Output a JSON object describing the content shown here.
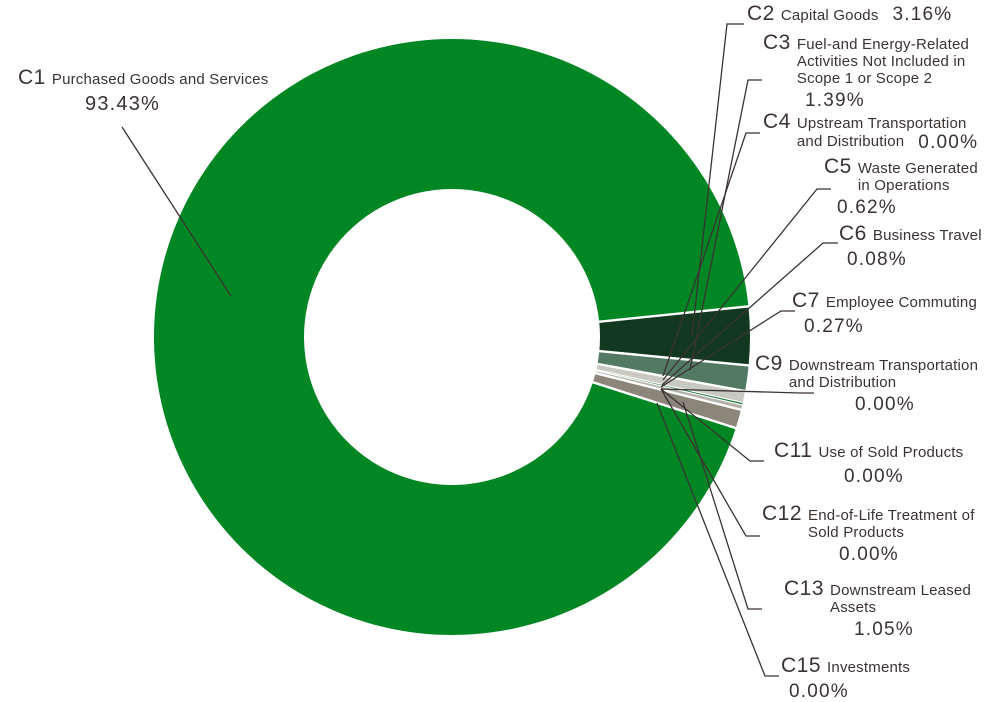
{
  "background": "#ffffff",
  "text_color": "#3a3332",
  "leader_line_color": "#3a3332",
  "separator_color": "#ffffff",
  "chart_data": {
    "type": "pie",
    "donut": true,
    "unit": "%",
    "legend_position": "none",
    "start_angle_clockwise_from_top_deg": 107.75,
    "slices": [
      {
        "code": "C1",
        "name_lines": [
          "Purchased Goods and Services"
        ],
        "value": 93.43,
        "pct_label": "93.43%",
        "color": "#008724"
      },
      {
        "code": "C2",
        "name_lines": [
          "Capital Goods"
        ],
        "value": 3.16,
        "pct_label": "3.16%",
        "color": "#12391f"
      },
      {
        "code": "C3",
        "name_lines": [
          "Fuel-and Energy-Related",
          "Activities Not Included in",
          "Scope 1 or Scope 2"
        ],
        "value": 1.39,
        "pct_label": "1.39%",
        "color": "#527a63"
      },
      {
        "code": "C4",
        "name_lines": [
          "Upstream Transportation",
          "and Distribution"
        ],
        "value": 0.0,
        "pct_label": "0.00%",
        "color": null
      },
      {
        "code": "C5",
        "name_lines": [
          "Waste Generated",
          "in Operations"
        ],
        "value": 0.62,
        "pct_label": "0.62%",
        "color": "#c8c9c0"
      },
      {
        "code": "C6",
        "name_lines": [
          "Business Travel"
        ],
        "value": 0.08,
        "pct_label": "0.08%",
        "color": "#137130"
      },
      {
        "code": "C7",
        "name_lines": [
          "Employee Commuting"
        ],
        "value": 0.27,
        "pct_label": "0.27%",
        "color": "#b2b2a7"
      },
      {
        "code": "C9",
        "name_lines": [
          "Downstream Transportation",
          "and Distribution"
        ],
        "value": 0.0,
        "pct_label": "0.00%",
        "color": null
      },
      {
        "code": "C11",
        "name_lines": [
          "Use of Sold Products"
        ],
        "value": 0.0,
        "pct_label": "0.00%",
        "color": null
      },
      {
        "code": "C12",
        "name_lines": [
          "End-of-Life Treatment of",
          "Sold Products"
        ],
        "value": 0.0,
        "pct_label": "0.00%",
        "color": null
      },
      {
        "code": "C13",
        "name_lines": [
          "Downstream Leased",
          "Assets"
        ],
        "value": 1.05,
        "pct_label": "1.05%",
        "color": "#8b8679"
      },
      {
        "code": "C15",
        "name_lines": [
          "Investments"
        ],
        "value": 0.0,
        "pct_label": "0.00%",
        "color": null
      }
    ]
  }
}
